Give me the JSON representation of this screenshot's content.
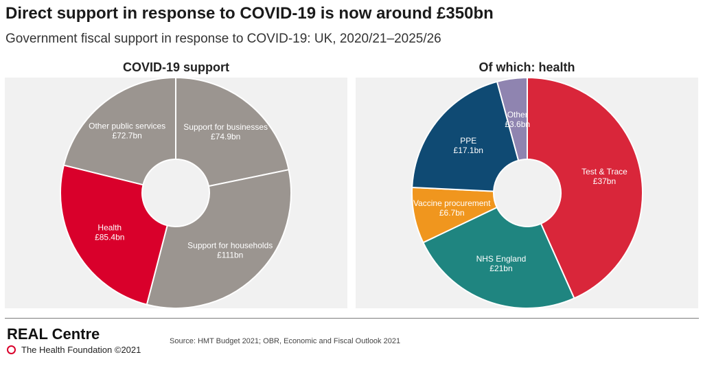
{
  "header": {
    "title": "Direct support in response to COVID-19 is now around £350bn",
    "subtitle": "Government fiscal support in response to COVID-19: UK, 2020/21–2025/26"
  },
  "chart_data": [
    {
      "type": "pie",
      "title": "COVID-19 support",
      "donut": true,
      "slices": [
        {
          "label": "Support for businesses",
          "value_label": "£74.9bn",
          "value": 74.9,
          "color": "#9b9590"
        },
        {
          "label": "Support for households",
          "value_label": "£111bn",
          "value": 111,
          "color": "#9b9590"
        },
        {
          "label": "Health",
          "value_label": "£85.4bn",
          "value": 85.4,
          "color": "#d9002b"
        },
        {
          "label": "Other public services",
          "value_label": "£72.7bn",
          "value": 72.7,
          "color": "#9b9590"
        }
      ]
    },
    {
      "type": "pie",
      "title": "Of which: health",
      "donut": true,
      "slices": [
        {
          "label": "Test & Trace",
          "value_label": "£37bn",
          "value": 37,
          "color": "#d9263a"
        },
        {
          "label": "NHS England",
          "value_label": "£21bn",
          "value": 21,
          "color": "#1f8580"
        },
        {
          "label": "Vaccine procurement",
          "value_label": "£6.7bn",
          "value": 6.7,
          "color": "#f0961e"
        },
        {
          "label": "PPE",
          "value_label": "£17.1bn",
          "value": 17.1,
          "color": "#0f4a73"
        },
        {
          "label": "Other",
          "value_label": "£3.6bn",
          "value": 3.6,
          "color": "#8f84b0"
        }
      ]
    }
  ],
  "footer": {
    "brand": "REAL Centre",
    "org": "The Health Foundation ©2021",
    "source": "Source: HMT Budget 2021; OBR, Economic and Fiscal Outlook 2021"
  }
}
